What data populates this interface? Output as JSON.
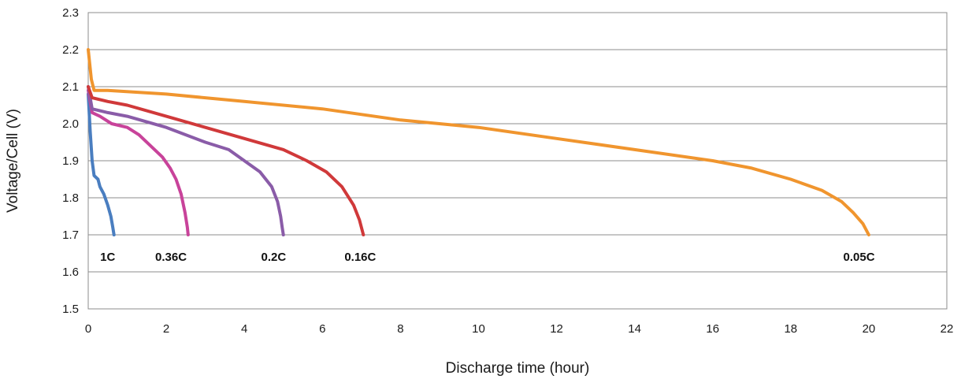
{
  "chart_data": {
    "type": "line",
    "title": "",
    "xlabel": "Discharge time (hour)",
    "ylabel": "Voltage/Cell (V)",
    "xlim": [
      0,
      22
    ],
    "ylim": [
      1.5,
      2.3
    ],
    "x_ticks": [
      0,
      2,
      4,
      6,
      8,
      10,
      12,
      14,
      16,
      18,
      20,
      22
    ],
    "y_ticks": [
      "1.5",
      "1.6",
      "1.7",
      "1.8",
      "1.9",
      "2.0",
      "2.1",
      "2.2",
      "2.3"
    ],
    "grid": true,
    "series": [
      {
        "name": "1C",
        "color": "#4a7ec0",
        "points": [
          [
            0,
            2.08
          ],
          [
            0.05,
            1.98
          ],
          [
            0.1,
            1.9
          ],
          [
            0.15,
            1.86
          ],
          [
            0.25,
            1.85
          ],
          [
            0.3,
            1.83
          ],
          [
            0.4,
            1.81
          ],
          [
            0.5,
            1.78
          ],
          [
            0.58,
            1.75
          ],
          [
            0.63,
            1.72
          ],
          [
            0.66,
            1.7
          ]
        ]
      },
      {
        "name": "0.36C",
        "color": "#c8439a",
        "points": [
          [
            0,
            2.09
          ],
          [
            0.1,
            2.03
          ],
          [
            0.3,
            2.02
          ],
          [
            0.6,
            2.0
          ],
          [
            1.0,
            1.99
          ],
          [
            1.3,
            1.97
          ],
          [
            1.6,
            1.94
          ],
          [
            1.9,
            1.91
          ],
          [
            2.1,
            1.88
          ],
          [
            2.25,
            1.85
          ],
          [
            2.38,
            1.81
          ],
          [
            2.48,
            1.76
          ],
          [
            2.54,
            1.72
          ],
          [
            2.56,
            1.7
          ]
        ]
      },
      {
        "name": "0.2C",
        "color": "#8a5ca8",
        "points": [
          [
            0,
            2.1
          ],
          [
            0.1,
            2.04
          ],
          [
            0.5,
            2.03
          ],
          [
            1.0,
            2.02
          ],
          [
            2.0,
            1.99
          ],
          [
            3.0,
            1.95
          ],
          [
            3.6,
            1.93
          ],
          [
            4.0,
            1.9
          ],
          [
            4.4,
            1.87
          ],
          [
            4.7,
            1.83
          ],
          [
            4.85,
            1.79
          ],
          [
            4.93,
            1.75
          ],
          [
            4.97,
            1.72
          ],
          [
            5.0,
            1.7
          ]
        ]
      },
      {
        "name": "0.16C",
        "color": "#d0393a",
        "points": [
          [
            0,
            2.1
          ],
          [
            0.1,
            2.07
          ],
          [
            0.5,
            2.06
          ],
          [
            1.0,
            2.05
          ],
          [
            2.0,
            2.02
          ],
          [
            3.0,
            1.99
          ],
          [
            4.0,
            1.96
          ],
          [
            5.0,
            1.93
          ],
          [
            5.6,
            1.9
          ],
          [
            6.1,
            1.87
          ],
          [
            6.5,
            1.83
          ],
          [
            6.8,
            1.78
          ],
          [
            6.95,
            1.74
          ],
          [
            7.05,
            1.7
          ]
        ]
      },
      {
        "name": "0.05C",
        "color": "#f0952e",
        "points": [
          [
            0,
            2.2
          ],
          [
            0.08,
            2.12
          ],
          [
            0.15,
            2.09
          ],
          [
            0.5,
            2.09
          ],
          [
            2.0,
            2.08
          ],
          [
            4.0,
            2.06
          ],
          [
            6.0,
            2.04
          ],
          [
            8.0,
            2.01
          ],
          [
            10.0,
            1.99
          ],
          [
            12.0,
            1.96
          ],
          [
            14.0,
            1.93
          ],
          [
            16.0,
            1.9
          ],
          [
            17.0,
            1.88
          ],
          [
            18.0,
            1.85
          ],
          [
            18.8,
            1.82
          ],
          [
            19.3,
            1.79
          ],
          [
            19.6,
            1.76
          ],
          [
            19.85,
            1.73
          ],
          [
            20.0,
            1.7
          ]
        ]
      }
    ],
    "labels": [
      {
        "text": "1C",
        "x": 0.5,
        "y": 1.64
      },
      {
        "text": "0.36C",
        "x": 2.12,
        "y": 1.64
      },
      {
        "text": "0.2C",
        "x": 4.75,
        "y": 1.64
      },
      {
        "text": "0.16C",
        "x": 6.97,
        "y": 1.64
      },
      {
        "text": "0.05C",
        "x": 19.75,
        "y": 1.64
      }
    ]
  }
}
